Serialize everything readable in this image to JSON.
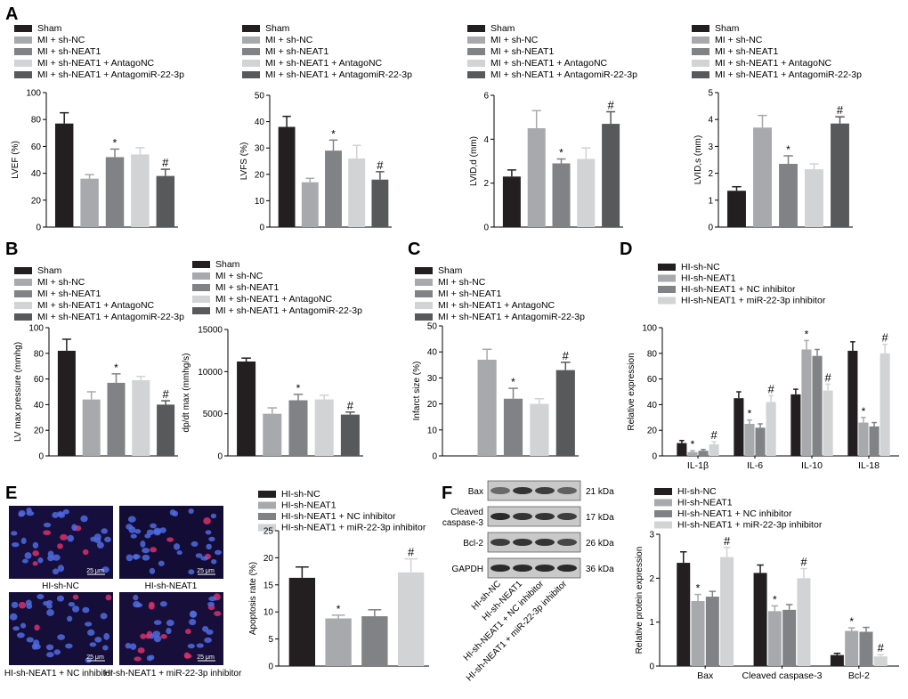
{
  "panels": {
    "A": "A",
    "B": "B",
    "C": "C",
    "D": "D",
    "E": "E",
    "F": "F"
  },
  "colors": {
    "black": "#231f20",
    "gray1": "#a7a9ac",
    "gray2": "#808285",
    "light": "#d1d3d4",
    "dark": "#58595b"
  },
  "legends": {
    "mi": [
      "Sham",
      "MI + sh-NC",
      "MI + sh-NEAT1",
      "MI + sh-NEAT1 +  AntagoNC",
      "MI + sh-NEAT1 + AntagomiR-22-3p"
    ],
    "hi": [
      "HI-sh-NC",
      "HI-sh-NEAT1",
      "HI-sh-NEAT1 + NC inhibitor",
      "HI-sh-NEAT1 + miR-22-3p inhibitor"
    ]
  },
  "micro": {
    "scale": "25 μm",
    "captions": [
      "HI-sh-NC",
      "HI-sh-NEAT1",
      "HI-sh-NEAT1 + NC inhibitor",
      "HI-sh-NEAT1 + miR-22-3p inhibitor"
    ]
  },
  "blot": {
    "rows": [
      {
        "label": "Bax",
        "kda": "21 kDa"
      },
      {
        "label": "Cleaved caspase-3",
        "kda": "17 kDa"
      },
      {
        "label": "Bcl-2",
        "kda": "26 kDa"
      },
      {
        "label": "GAPDH",
        "kda": "36 kDa"
      }
    ],
    "lanes": [
      "HI-sh-NC",
      "HI-sh-NEAT1",
      "HI-sh-NEAT1 + NC inhibitor",
      "HI-sh-NEAT1 + miR-22-3p inhibitor"
    ]
  },
  "chart_data": [
    {
      "id": "LVEF",
      "type": "bar",
      "ylabel": "LVEF (%)",
      "ylim": [
        0,
        100
      ],
      "ticks": [
        0,
        20,
        40,
        60,
        80,
        100
      ],
      "values": [
        77,
        36,
        52,
        54,
        38
      ],
      "errors": [
        8,
        3,
        6,
        5,
        5
      ],
      "markers": [
        "",
        "",
        "*",
        "",
        "#"
      ]
    },
    {
      "id": "LVFS",
      "type": "bar",
      "ylabel": "LVFS (%)",
      "ylim": [
        0,
        50
      ],
      "ticks": [
        0,
        10,
        20,
        30,
        40,
        50
      ],
      "values": [
        38,
        17,
        29,
        26,
        18
      ],
      "errors": [
        4,
        1.5,
        4,
        5,
        3
      ],
      "markers": [
        "",
        "",
        "*",
        "",
        "#"
      ]
    },
    {
      "id": "LVIDd",
      "type": "bar",
      "ylabel": "LVID,d (mm)",
      "ylim": [
        0,
        6
      ],
      "ticks": [
        0,
        2,
        4,
        6
      ],
      "values": [
        2.3,
        4.5,
        2.9,
        3.1,
        4.7
      ],
      "errors": [
        0.3,
        0.8,
        0.2,
        0.5,
        0.55
      ],
      "markers": [
        "",
        "",
        "*",
        "",
        "#"
      ]
    },
    {
      "id": "LVIDs",
      "type": "bar",
      "ylabel": "LVID,s (mm)",
      "ylim": [
        0,
        5
      ],
      "ticks": [
        0,
        1,
        2,
        3,
        4,
        5
      ],
      "values": [
        1.35,
        3.7,
        2.35,
        2.15,
        3.85
      ],
      "errors": [
        0.15,
        0.45,
        0.3,
        0.2,
        0.25
      ],
      "markers": [
        "",
        "",
        "*",
        "",
        "#"
      ]
    },
    {
      "id": "LVmax",
      "type": "bar",
      "ylabel": "LV max pressure (mmhg)",
      "ylim": [
        0,
        100
      ],
      "ticks": [
        0,
        20,
        40,
        60,
        80,
        100
      ],
      "values": [
        82,
        44,
        57,
        59,
        40
      ],
      "errors": [
        9,
        6,
        7,
        3,
        3
      ],
      "markers": [
        "",
        "",
        "*",
        "",
        "#"
      ]
    },
    {
      "id": "dpdt",
      "type": "bar",
      "ylabel": "dp/dt max (mmhg/s)",
      "ylim": [
        0,
        15000
      ],
      "ticks": [
        0,
        5000,
        10000,
        15000
      ],
      "values": [
        11200,
        5000,
        6600,
        6700,
        4900
      ],
      "errors": [
        400,
        700,
        700,
        500,
        300
      ],
      "markers": [
        "",
        "",
        "*",
        "",
        "#"
      ]
    },
    {
      "id": "infarct",
      "type": "bar",
      "ylabel": "Infarct size (%)",
      "ylim": [
        0,
        50
      ],
      "ticks": [
        0,
        10,
        20,
        30,
        40,
        50
      ],
      "values": [
        0,
        37,
        22,
        20,
        33
      ],
      "errors": [
        0,
        4,
        4,
        2,
        3
      ],
      "markers": [
        "",
        "",
        "*",
        "",
        "#"
      ]
    },
    {
      "id": "IL",
      "type": "bar",
      "ylabel": "Relative expression",
      "ylim": [
        0,
        100
      ],
      "ticks": [
        0,
        20,
        40,
        60,
        80,
        100
      ],
      "categories": [
        "IL-1β",
        "IL-6",
        "IL-10",
        "IL-18"
      ],
      "series": [
        {
          "name": "HI-sh-NC",
          "values": [
            10,
            45,
            48,
            82
          ],
          "errors": [
            2,
            5,
            4,
            7
          ],
          "markers": [
            "",
            "",
            "",
            ""
          ]
        },
        {
          "name": "HI-sh-NEAT1",
          "values": [
            3,
            25,
            83,
            26
          ],
          "errors": [
            1,
            3,
            7,
            4
          ],
          "markers": [
            "*",
            "*",
            "*",
            "*"
          ]
        },
        {
          "name": "HI-sh-NEAT1 + NC inhibitor",
          "values": [
            4,
            22,
            78,
            23
          ],
          "errors": [
            1,
            3,
            5,
            3
          ],
          "markers": [
            "",
            "",
            "",
            ""
          ]
        },
        {
          "name": "HI-sh-NEAT1 + miR-22-3p inhibitor",
          "values": [
            9,
            42,
            51,
            80
          ],
          "errors": [
            2,
            5,
            5,
            7
          ],
          "markers": [
            "#",
            "#",
            "#",
            "#"
          ]
        }
      ]
    },
    {
      "id": "apoptosis",
      "type": "bar",
      "ylabel": "Apoptosis rate (%)",
      "ylim": [
        0,
        25
      ],
      "ticks": [
        0,
        5,
        10,
        15,
        20,
        25
      ],
      "values": [
        16.3,
        8.8,
        9.2,
        17.3
      ],
      "errors": [
        2,
        0.6,
        1.2,
        2.5
      ],
      "markers": [
        "",
        "*",
        "",
        "#"
      ]
    },
    {
      "id": "protein",
      "type": "bar",
      "ylabel": "Relative protein expression",
      "ylim": [
        0,
        3
      ],
      "ticks": [
        0,
        1,
        2,
        3
      ],
      "categories": [
        "Bax",
        "Cleaved caspase-3",
        "Bcl-2"
      ],
      "series": [
        {
          "name": "HI-sh-NC",
          "values": [
            2.35,
            2.12,
            0.25
          ],
          "errors": [
            0.25,
            0.18,
            0.04
          ],
          "markers": [
            "",
            "",
            ""
          ]
        },
        {
          "name": "HI-sh-NEAT1",
          "values": [
            1.48,
            1.25,
            0.8
          ],
          "errors": [
            0.15,
            0.12,
            0.07
          ],
          "markers": [
            "*",
            "*",
            "*"
          ]
        },
        {
          "name": "HI-sh-NEAT1 + NC inhibitor",
          "values": [
            1.58,
            1.28,
            0.78
          ],
          "errors": [
            0.12,
            0.12,
            0.1
          ],
          "markers": [
            "",
            "",
            ""
          ]
        },
        {
          "name": "HI-sh-NEAT1 + miR-22-3p inhibitor",
          "values": [
            2.48,
            2.0,
            0.22
          ],
          "errors": [
            0.22,
            0.22,
            0.04
          ],
          "markers": [
            "#",
            "#",
            "#"
          ]
        }
      ]
    }
  ]
}
